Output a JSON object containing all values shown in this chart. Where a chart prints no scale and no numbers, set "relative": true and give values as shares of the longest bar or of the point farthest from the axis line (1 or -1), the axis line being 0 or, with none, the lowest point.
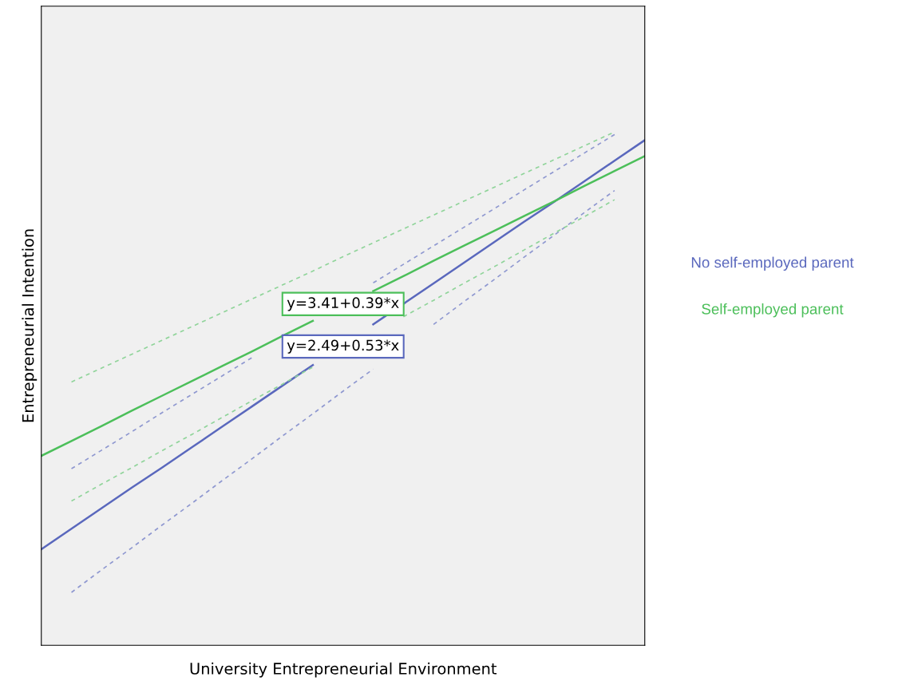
{
  "chart_data": {
    "type": "line",
    "relative": true,
    "xlabel": "University Entrepreneurial Environment",
    "ylabel": "Entrepreneurial Intention",
    "categories": [
      null,
      null,
      null,
      null,
      null,
      null,
      null,
      null,
      null,
      null,
      null,
      null,
      null,
      null,
      null,
      null,
      null,
      null,
      null,
      null,
      null
    ],
    "series": [
      {
        "name": "No self-employed parent",
        "color": "#5a68bd",
        "line_style": "solid",
        "values": [
          0.187,
          0.227,
          0.267,
          0.307,
          0.346,
          0.386,
          0.426,
          0.466,
          0.506,
          0.546,
          null,
          0.625,
          0.665,
          0.705,
          0.745,
          0.785,
          0.825,
          0.864,
          0.904,
          0.944,
          0.984
        ]
      },
      {
        "name": "Self-employed parent",
        "color": "#4cbf5a",
        "line_style": "solid",
        "values": [
          0.369,
          0.398,
          0.427,
          0.457,
          0.486,
          0.515,
          0.544,
          0.573,
          0.603,
          0.632,
          null,
          0.69,
          0.719,
          0.749,
          0.778,
          0.807,
          0.836,
          0.865,
          0.895,
          0.924,
          0.953
        ]
      },
      {
        "color": "#8f98d0",
        "line_style": "dashed",
        "values": [
          null,
          0.344,
          0.38,
          0.416,
          0.453,
          0.489,
          0.525,
          0.561,
          null,
          null,
          null,
          0.706,
          0.742,
          0.778,
          0.814,
          0.85,
          0.887,
          0.923,
          0.959,
          0.995,
          null
        ]
      },
      {
        "color": "#8f98d0",
        "line_style": "dashed",
        "values": [
          null,
          0.103,
          0.147,
          0.19,
          0.234,
          0.277,
          0.321,
          0.364,
          0.408,
          0.451,
          0.495,
          0.538,
          null,
          0.625,
          0.669,
          0.712,
          0.756,
          0.799,
          0.843,
          0.886,
          null
        ]
      },
      {
        "color": "#90d49a",
        "line_style": "dashed",
        "values": [
          null,
          0.513,
          0.54,
          0.567,
          0.594,
          0.621,
          0.648,
          0.675,
          0.702,
          0.729,
          0.757,
          0.784,
          0.811,
          0.838,
          0.865,
          0.892,
          0.919,
          0.946,
          0.973,
          1.0,
          null
        ]
      },
      {
        "color": "#90d49a",
        "line_style": "dashed",
        "values": [
          null,
          0.281,
          0.314,
          0.346,
          0.379,
          0.411,
          0.444,
          0.477,
          0.509,
          0.542,
          null,
          null,
          0.64,
          0.672,
          0.705,
          0.737,
          0.77,
          0.803,
          0.835,
          0.868,
          null
        ]
      }
    ],
    "annotations": [
      "y=3.41+0.39*x",
      "y=2.49+0.53*x"
    ]
  }
}
